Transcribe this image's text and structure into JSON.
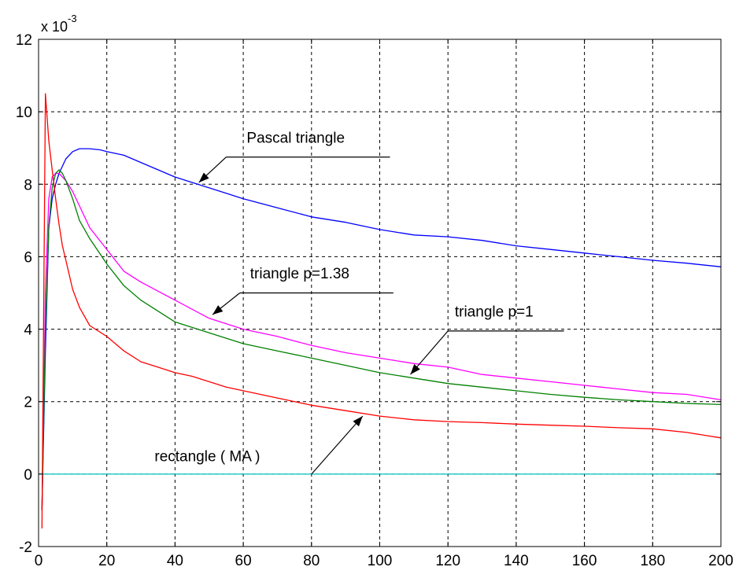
{
  "chart_data": {
    "type": "line",
    "title": "",
    "xlabel": "",
    "ylabel": "",
    "xlim": [
      0,
      200
    ],
    "ylim": [
      -2,
      12
    ],
    "y_multiplier_label": "x 10",
    "y_multiplier_exponent": "-3",
    "x_ticks": [
      "0",
      "20",
      "40",
      "60",
      "80",
      "100",
      "120",
      "140",
      "160",
      "180",
      "200"
    ],
    "y_ticks": [
      "-2",
      "0",
      "2",
      "4",
      "6",
      "8",
      "10",
      "12"
    ],
    "x_tick_values": [
      0,
      20,
      40,
      60,
      80,
      100,
      120,
      140,
      160,
      180,
      200
    ],
    "y_tick_values": [
      -2,
      0,
      2,
      4,
      6,
      8,
      10,
      12
    ],
    "grid": true,
    "grid_style": "dashed",
    "series": [
      {
        "color": "#0000ff",
        "x": [
          1,
          2,
          3,
          4,
          5,
          6,
          8,
          10,
          12,
          15,
          18,
          20,
          25,
          30,
          35,
          40,
          45,
          50,
          55,
          60,
          70,
          80,
          90,
          100,
          110,
          120,
          130,
          140,
          150,
          160,
          170,
          180,
          190,
          200
        ],
        "values": [
          -1.0,
          3.4,
          6.8,
          7.6,
          8.0,
          8.3,
          8.7,
          8.9,
          8.98,
          8.98,
          8.95,
          8.9,
          8.8,
          8.6,
          8.4,
          8.2,
          8.05,
          7.9,
          7.75,
          7.6,
          7.35,
          7.1,
          6.95,
          6.75,
          6.6,
          6.55,
          6.45,
          6.3,
          6.2,
          6.1,
          6.0,
          5.9,
          5.82,
          5.72
        ]
      },
      {
        "color": "#ff00ff",
        "x": [
          1,
          2,
          3,
          4,
          5,
          6,
          7,
          8,
          10,
          12,
          15,
          20,
          25,
          30,
          40,
          50,
          60,
          70,
          80,
          90,
          100,
          110,
          120,
          130,
          140,
          150,
          160,
          170,
          180,
          190,
          200
        ],
        "values": [
          -1.0,
          5.0,
          7.6,
          8.2,
          8.3,
          8.3,
          8.2,
          8.1,
          7.8,
          7.4,
          6.8,
          6.2,
          5.6,
          5.3,
          4.8,
          4.3,
          4.0,
          3.8,
          3.55,
          3.35,
          3.2,
          3.05,
          2.95,
          2.75,
          2.65,
          2.55,
          2.45,
          2.35,
          2.25,
          2.2,
          2.05
        ]
      },
      {
        "color": "#008000",
        "x": [
          1,
          2,
          3,
          4,
          5,
          6,
          7,
          8,
          10,
          12,
          15,
          20,
          25,
          30,
          40,
          50,
          60,
          70,
          80,
          90,
          100,
          110,
          120,
          130,
          140,
          150,
          160,
          170,
          180,
          190,
          200
        ],
        "values": [
          -1.0,
          4.0,
          6.8,
          7.9,
          8.3,
          8.4,
          8.3,
          8.1,
          7.6,
          7.0,
          6.5,
          5.8,
          5.2,
          4.8,
          4.2,
          3.9,
          3.6,
          3.4,
          3.2,
          3.0,
          2.8,
          2.65,
          2.5,
          2.4,
          2.3,
          2.2,
          2.12,
          2.05,
          2.0,
          1.95,
          1.92
        ]
      },
      {
        "color": "#ff0000",
        "x": [
          1,
          2,
          3,
          4,
          5,
          6,
          7,
          8,
          10,
          12,
          15,
          20,
          25,
          30,
          35,
          40,
          45,
          50,
          55,
          60,
          70,
          80,
          90,
          100,
          110,
          120,
          130,
          140,
          150,
          160,
          170,
          180,
          190,
          200
        ],
        "values": [
          -1.5,
          10.5,
          9.2,
          8.4,
          7.6,
          6.9,
          6.3,
          5.9,
          5.1,
          4.6,
          4.1,
          3.8,
          3.4,
          3.1,
          2.95,
          2.8,
          2.7,
          2.55,
          2.4,
          2.3,
          2.1,
          1.9,
          1.75,
          1.6,
          1.5,
          1.45,
          1.42,
          1.38,
          1.35,
          1.32,
          1.28,
          1.25,
          1.15,
          1.0
        ]
      },
      {
        "color": "#00c0c0",
        "x": [
          0,
          1,
          200
        ],
        "values": [
          0,
          0,
          0
        ]
      }
    ],
    "annotations": [
      {
        "text": "Pascal triangle",
        "series_index": 0,
        "text_x": 61,
        "text_y": 9.15,
        "leader_to_x": 103,
        "leader_y": 8.75,
        "arrow_from_x": 55,
        "arrow_to_x": 47,
        "arrow_to_y": 8.05
      },
      {
        "text": "triangle p=1.38",
        "series_index": 1,
        "text_x": 62,
        "text_y": 5.4,
        "leader_to_x": 104,
        "leader_y": 5.0,
        "arrow_from_x": 59,
        "arrow_to_x": 51,
        "arrow_to_y": 4.4
      },
      {
        "text": "triangle p=1",
        "series_index": 2,
        "text_x": 122,
        "text_y": 4.35,
        "leader_to_x": 154,
        "leader_y": 3.95,
        "arrow_from_x": 120,
        "arrow_to_x": 109,
        "arrow_to_y": 2.75
      },
      {
        "text": "rectangle  ( MA )",
        "series_index": 3,
        "text_x": 34,
        "text_y": 0.35,
        "leader_to_x": 80,
        "leader_y": 0.0,
        "arrow_from_x": 80,
        "arrow_to_x": 95,
        "arrow_to_y": 1.6
      }
    ]
  }
}
